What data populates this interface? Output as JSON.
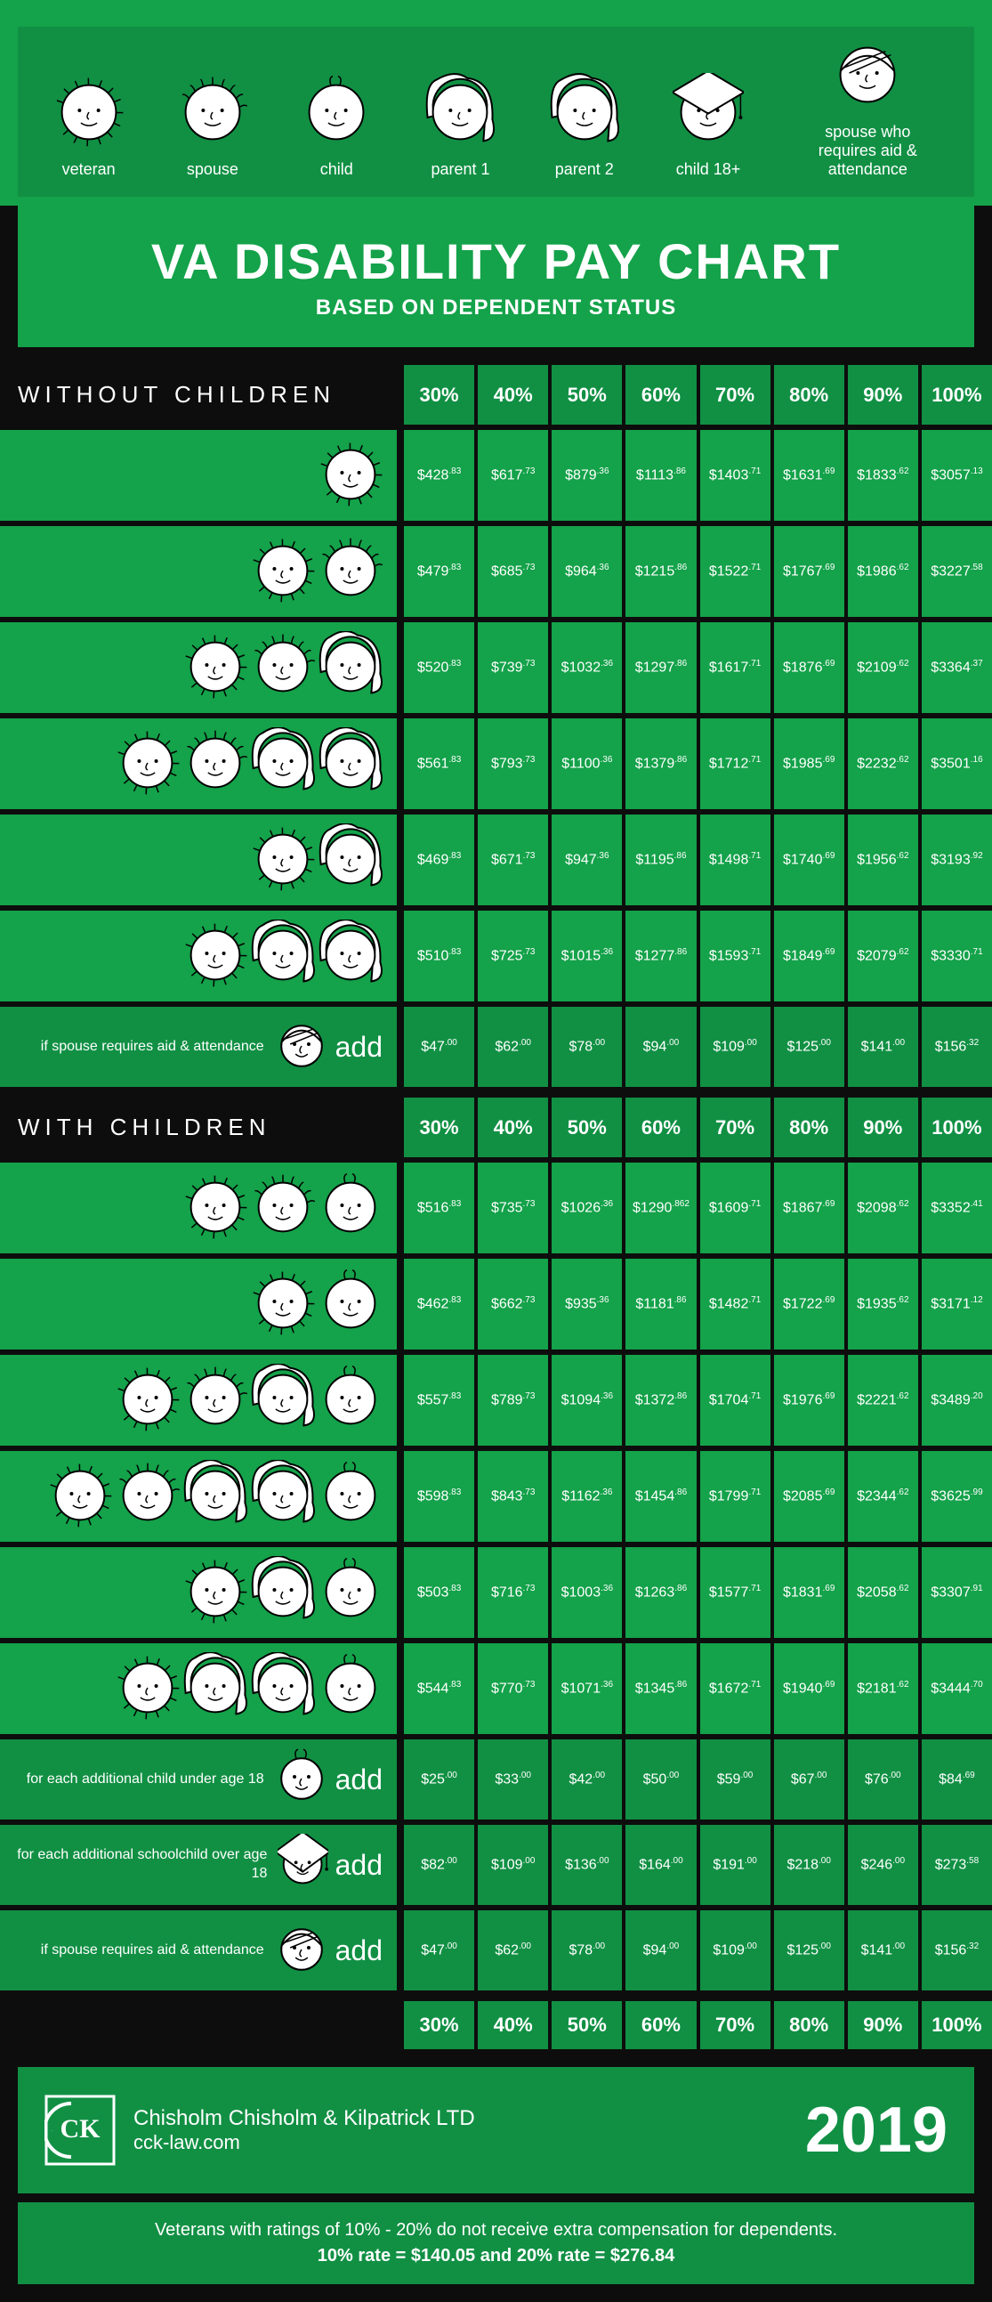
{
  "colors": {
    "bg": "#0d0d0d",
    "green": "#14a24a",
    "green_dark": "#119044",
    "text": "#ffffff"
  },
  "legend": [
    {
      "label": "veteran",
      "icon": "veteran"
    },
    {
      "label": "spouse",
      "icon": "spouse"
    },
    {
      "label": "child",
      "icon": "child"
    },
    {
      "label": "parent 1",
      "icon": "parent1"
    },
    {
      "label": "parent 2",
      "icon": "parent2"
    },
    {
      "label": "child 18+",
      "icon": "child18"
    },
    {
      "label": "spouse who requires aid & attendance",
      "icon": "aid"
    }
  ],
  "title": {
    "main": "VA DISABILITY PAY CHART",
    "sub": "BASED ON DEPENDENT STATUS"
  },
  "percents": [
    "30%",
    "40%",
    "50%",
    "60%",
    "70%",
    "80%",
    "90%",
    "100%"
  ],
  "sections": {
    "without": {
      "header": "WITHOUT CHILDREN",
      "rows": [
        {
          "faces": [
            "veteran"
          ],
          "vals": [
            {
              "d": "$428",
              "c": ".83"
            },
            {
              "d": "$617",
              "c": ".73"
            },
            {
              "d": "$879",
              "c": ".36"
            },
            {
              "d": "$1113",
              "c": ".86"
            },
            {
              "d": "$1403",
              "c": ".71"
            },
            {
              "d": "$1631",
              "c": ".69"
            },
            {
              "d": "$1833",
              "c": ".62"
            },
            {
              "d": "$3057",
              "c": ".13"
            }
          ]
        },
        {
          "faces": [
            "veteran",
            "spouse"
          ],
          "vals": [
            {
              "d": "$479",
              "c": ".83"
            },
            {
              "d": "$685",
              "c": ".73"
            },
            {
              "d": "$964",
              "c": ".36"
            },
            {
              "d": "$1215",
              "c": ".86"
            },
            {
              "d": "$1522",
              "c": ".71"
            },
            {
              "d": "$1767",
              "c": ".69"
            },
            {
              "d": "$1986",
              "c": ".62"
            },
            {
              "d": "$3227",
              "c": ".58"
            }
          ]
        },
        {
          "faces": [
            "veteran",
            "spouse",
            "parent1"
          ],
          "vals": [
            {
              "d": "$520",
              "c": ".83"
            },
            {
              "d": "$739",
              "c": ".73"
            },
            {
              "d": "$1032",
              "c": ".36"
            },
            {
              "d": "$1297",
              "c": ".86"
            },
            {
              "d": "$1617",
              "c": ".71"
            },
            {
              "d": "$1876",
              "c": ".69"
            },
            {
              "d": "$2109",
              "c": ".62"
            },
            {
              "d": "$3364",
              "c": ".37"
            }
          ]
        },
        {
          "faces": [
            "veteran",
            "spouse",
            "parent1",
            "parent2"
          ],
          "vals": [
            {
              "d": "$561",
              "c": ".83"
            },
            {
              "d": "$793",
              "c": ".73"
            },
            {
              "d": "$1100",
              "c": ".36"
            },
            {
              "d": "$1379",
              "c": ".86"
            },
            {
              "d": "$1712",
              "c": ".71"
            },
            {
              "d": "$1985",
              "c": ".69"
            },
            {
              "d": "$2232",
              "c": ".62"
            },
            {
              "d": "$3501",
              "c": ".16"
            }
          ]
        },
        {
          "faces": [
            "veteran",
            "parent1"
          ],
          "vals": [
            {
              "d": "$469",
              "c": ".83"
            },
            {
              "d": "$671",
              "c": ".73"
            },
            {
              "d": "$947",
              "c": ".36"
            },
            {
              "d": "$1195",
              "c": ".86"
            },
            {
              "d": "$1498",
              "c": ".71"
            },
            {
              "d": "$1740",
              "c": ".69"
            },
            {
              "d": "$1956",
              "c": ".62"
            },
            {
              "d": "$3193",
              "c": ".92"
            }
          ]
        },
        {
          "faces": [
            "veteran",
            "parent1",
            "parent2"
          ],
          "vals": [
            {
              "d": "$510",
              "c": ".83"
            },
            {
              "d": "$725",
              "c": ".73"
            },
            {
              "d": "$1015",
              "c": ".36"
            },
            {
              "d": "$1277",
              "c": ".86"
            },
            {
              "d": "$1593",
              "c": ".71"
            },
            {
              "d": "$1849",
              "c": ".69"
            },
            {
              "d": "$2079",
              "c": ".62"
            },
            {
              "d": "$3330",
              "c": ".71"
            }
          ]
        }
      ],
      "addRows": [
        {
          "text": "if spouse requires aid & attendance",
          "icon": "aid",
          "vals": [
            {
              "d": "$47",
              "c": ".00"
            },
            {
              "d": "$62",
              "c": ".00"
            },
            {
              "d": "$78",
              "c": ".00"
            },
            {
              "d": "$94",
              "c": ".00"
            },
            {
              "d": "$109",
              "c": ".00"
            },
            {
              "d": "$125",
              "c": ".00"
            },
            {
              "d": "$141",
              "c": ".00"
            },
            {
              "d": "$156",
              "c": ".32"
            }
          ]
        }
      ]
    },
    "with": {
      "header": "WITH CHILDREN",
      "rows": [
        {
          "faces": [
            "veteran",
            "spouse",
            "child"
          ],
          "vals": [
            {
              "d": "$516",
              "c": ".83"
            },
            {
              "d": "$735",
              "c": ".73"
            },
            {
              "d": "$1026",
              "c": ".36"
            },
            {
              "d": "$1290",
              "c": ".862"
            },
            {
              "d": "$1609",
              "c": ".71"
            },
            {
              "d": "$1867",
              "c": ".69"
            },
            {
              "d": "$2098",
              "c": ".62"
            },
            {
              "d": "$3352",
              "c": ".41"
            }
          ]
        },
        {
          "faces": [
            "veteran",
            "child"
          ],
          "vals": [
            {
              "d": "$462",
              "c": ".83"
            },
            {
              "d": "$662",
              "c": ".73"
            },
            {
              "d": "$935",
              "c": ".36"
            },
            {
              "d": "$1181",
              "c": ".86"
            },
            {
              "d": "$1482",
              "c": ".71"
            },
            {
              "d": "$1722",
              "c": ".69"
            },
            {
              "d": "$1935",
              "c": ".62"
            },
            {
              "d": "$3171",
              "c": ".12"
            }
          ]
        },
        {
          "faces": [
            "veteran",
            "spouse",
            "parent1",
            "child"
          ],
          "vals": [
            {
              "d": "$557",
              "c": ".83"
            },
            {
              "d": "$789",
              "c": ".73"
            },
            {
              "d": "$1094",
              "c": ".36"
            },
            {
              "d": "$1372",
              "c": ".86"
            },
            {
              "d": "$1704",
              "c": ".71"
            },
            {
              "d": "$1976",
              "c": ".69"
            },
            {
              "d": "$2221",
              "c": ".62"
            },
            {
              "d": "$3489",
              "c": ".20"
            }
          ]
        },
        {
          "faces": [
            "veteran",
            "spouse",
            "parent1",
            "parent2",
            "child"
          ],
          "vals": [
            {
              "d": "$598",
              "c": ".83"
            },
            {
              "d": "$843",
              "c": ".73"
            },
            {
              "d": "$1162",
              "c": ".36"
            },
            {
              "d": "$1454",
              "c": ".86"
            },
            {
              "d": "$1799",
              "c": ".71"
            },
            {
              "d": "$2085",
              "c": ".69"
            },
            {
              "d": "$2344",
              "c": ".62"
            },
            {
              "d": "$3625",
              "c": ".99"
            }
          ]
        },
        {
          "faces": [
            "veteran",
            "parent1",
            "child"
          ],
          "vals": [
            {
              "d": "$503",
              "c": ".83"
            },
            {
              "d": "$716",
              "c": ".73"
            },
            {
              "d": "$1003",
              "c": ".36"
            },
            {
              "d": "$1263",
              "c": ".86"
            },
            {
              "d": "$1577",
              "c": ".71"
            },
            {
              "d": "$1831",
              "c": ".69"
            },
            {
              "d": "$2058",
              "c": ".62"
            },
            {
              "d": "$3307",
              "c": ".91"
            }
          ]
        },
        {
          "faces": [
            "veteran",
            "parent1",
            "parent2",
            "child"
          ],
          "vals": [
            {
              "d": "$544",
              "c": ".83"
            },
            {
              "d": "$770",
              "c": ".73"
            },
            {
              "d": "$1071",
              "c": ".36"
            },
            {
              "d": "$1345",
              "c": ".86"
            },
            {
              "d": "$1672",
              "c": ".71"
            },
            {
              "d": "$1940",
              "c": ".69"
            },
            {
              "d": "$2181",
              "c": ".62"
            },
            {
              "d": "$3444",
              "c": ".70"
            }
          ]
        }
      ],
      "addRows": [
        {
          "text": "for each additional child under age 18",
          "icon": "child",
          "vals": [
            {
              "d": "$25",
              "c": ".00"
            },
            {
              "d": "$33",
              "c": ".00"
            },
            {
              "d": "$42",
              "c": ".00"
            },
            {
              "d": "$50",
              "c": ".00"
            },
            {
              "d": "$59",
              "c": ".00"
            },
            {
              "d": "$67",
              "c": ".00"
            },
            {
              "d": "$76",
              "c": ".00"
            },
            {
              "d": "$84",
              "c": ".69"
            }
          ]
        },
        {
          "text": "for each additional schoolchild over age 18",
          "icon": "child18",
          "vals": [
            {
              "d": "$82",
              "c": ".00"
            },
            {
              "d": "$109",
              "c": ".00"
            },
            {
              "d": "$136",
              "c": ".00"
            },
            {
              "d": "$164",
              "c": ".00"
            },
            {
              "d": "$191",
              "c": ".00"
            },
            {
              "d": "$218",
              "c": ".00"
            },
            {
              "d": "$246",
              "c": ".00"
            },
            {
              "d": "$273",
              "c": ".58"
            }
          ]
        },
        {
          "text": "if spouse requires aid & attendance",
          "icon": "aid",
          "vals": [
            {
              "d": "$47",
              "c": ".00"
            },
            {
              "d": "$62",
              "c": ".00"
            },
            {
              "d": "$78",
              "c": ".00"
            },
            {
              "d": "$94",
              "c": ".00"
            },
            {
              "d": "$109",
              "c": ".00"
            },
            {
              "d": "$125",
              "c": ".00"
            },
            {
              "d": "$141",
              "c": ".00"
            },
            {
              "d": "$156",
              "c": ".32"
            }
          ]
        }
      ]
    }
  },
  "addWord": "add",
  "footer": {
    "company": "Chisholm Chisholm & Kilpatrick LTD",
    "url": "cck-law.com",
    "year": "2019",
    "note": "Veterans with ratings of 10% - 20% do not receive extra compensation for dependents.",
    "rates": "10% rate = $140.05  and  20% rate = $276.84"
  }
}
